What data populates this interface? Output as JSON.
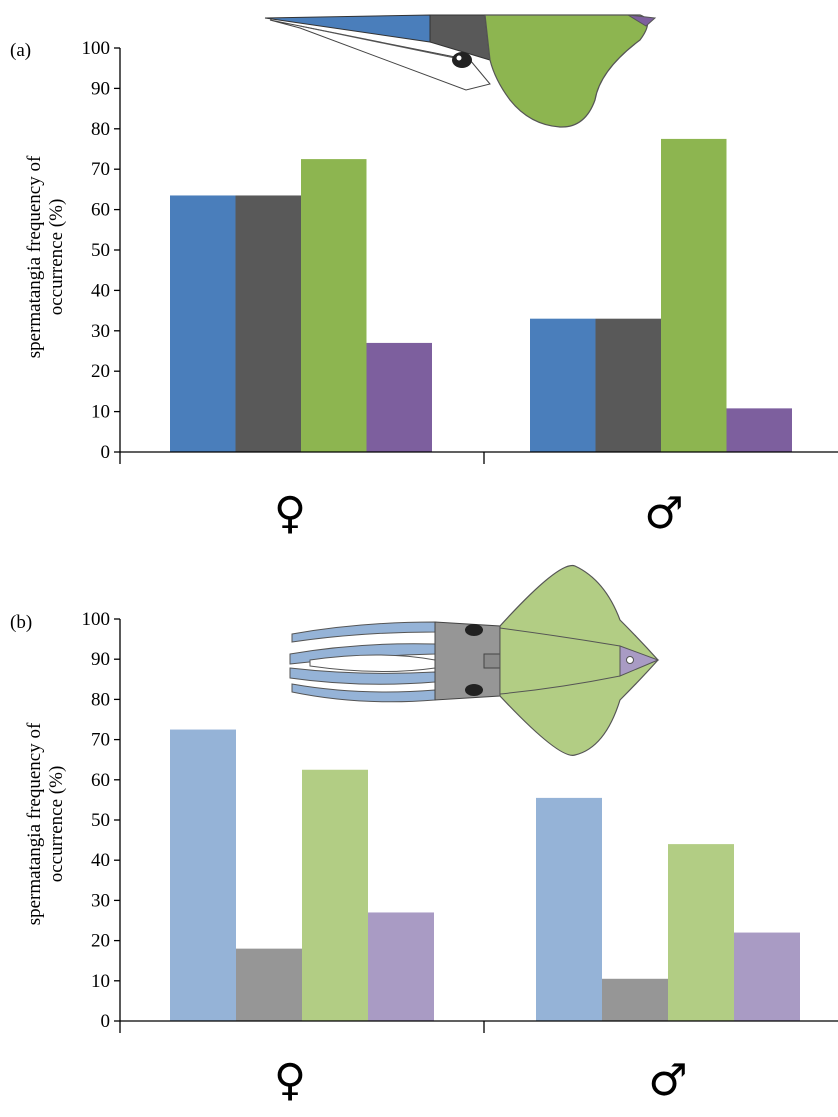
{
  "chart_data": [
    {
      "type": "bar",
      "panel_label": "(a)",
      "ylabel_lines": [
        "spermatangia frequency of",
        "occurrence (%)"
      ],
      "categories": [
        "♀",
        "♂"
      ],
      "ylim": [
        0,
        100
      ],
      "yticks": [
        0,
        10,
        20,
        30,
        40,
        50,
        60,
        70,
        80,
        90,
        100
      ],
      "grid": false,
      "series": [
        {
          "color": "#4a7ebb",
          "values": [
            63.5,
            33
          ]
        },
        {
          "color": "#595959",
          "values": [
            63.5,
            33
          ]
        },
        {
          "color": "#8db550",
          "values": [
            72.5,
            77.5
          ]
        },
        {
          "color": "#7d5f9e",
          "values": [
            27,
            10.8
          ]
        }
      ]
    },
    {
      "type": "bar",
      "panel_label": "(b)",
      "ylabel_lines": [
        "spermatangia frequency of",
        "occurrence (%)"
      ],
      "categories": [
        "♀",
        "♂"
      ],
      "ylim": [
        0,
        100
      ],
      "yticks": [
        0,
        10,
        20,
        30,
        40,
        50,
        60,
        70,
        80,
        90,
        100
      ],
      "grid": false,
      "series": [
        {
          "color": "#95b3d7",
          "values": [
            72.5,
            55.5
          ]
        },
        {
          "color": "#969696",
          "values": [
            18,
            10.5
          ]
        },
        {
          "color": "#b2cd84",
          "values": [
            62.5,
            44
          ]
        },
        {
          "color": "#a99bc4",
          "values": [
            27,
            22
          ]
        }
      ]
    }
  ],
  "illustrations": {
    "top": "squid-side-view-illustration",
    "bottom": "squid-dorsal-view-illustration"
  }
}
